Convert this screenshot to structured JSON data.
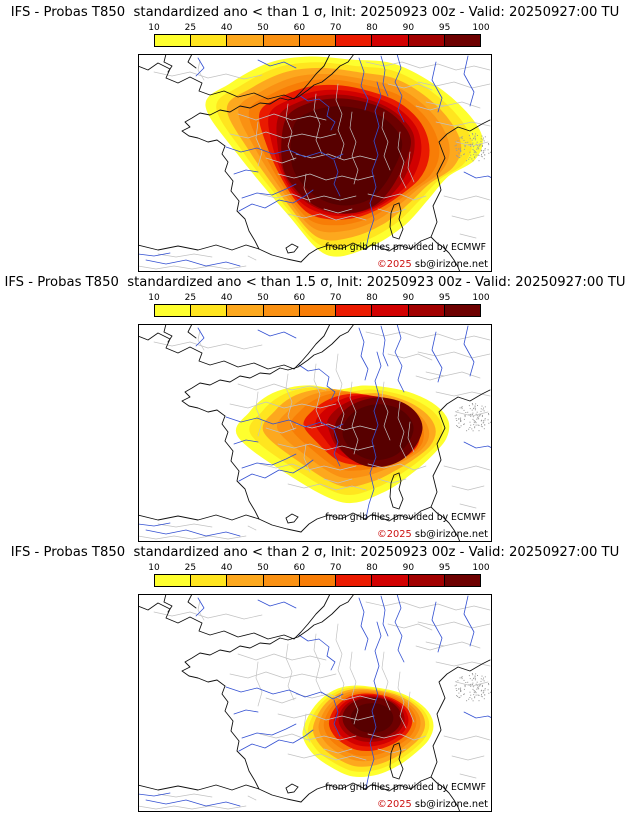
{
  "page": {
    "background": "#ffffff"
  },
  "colorbar": {
    "ticks": [
      "10",
      "25",
      "40",
      "50",
      "60",
      "70",
      "80",
      "90",
      "95",
      "100"
    ],
    "colors": [
      "#feff2e",
      "#ffe51f",
      "#fda81e",
      "#fa9113",
      "#f87d06",
      "#ea1a00",
      "#d10000",
      "#a10000",
      "#6d0000"
    ],
    "border_color": "#000000"
  },
  "map_colors": {
    "core_extra": "#570000",
    "coast": "#111111",
    "river": "#3350d2",
    "admin": "#c2c2c2",
    "stipple": "#9a9a9a",
    "frame": "#000000",
    "sea": "#ffffff",
    "copyright_red": "#cc1111",
    "text_black": "#000000"
  },
  "attribution": {
    "line1": "from grib files provided by ECMWF",
    "copyright": "©2025 ",
    "site": "sb@irizone.net"
  },
  "panels": [
    {
      "id": "sigma-1",
      "sigma": "1",
      "title": "IFS - Probas T850  standardized ano < than 1 σ, Init: 20250923 00z - Valid: 20250927:00 TU"
    },
    {
      "id": "sigma-1.5",
      "sigma": "1.5",
      "title": "IFS - Probas T850  standardized ano < than 1.5 σ, Init: 20250923 00z - Valid: 20250927:00 TU"
    },
    {
      "id": "sigma-2",
      "sigma": "2",
      "title": "IFS - Probas T850  standardized ano < than 2 σ, Init: 20250923 00z - Valid: 20250927:00 TU"
    }
  ],
  "chart_data": [
    {
      "type": "heatmap",
      "title": "IFS - Probas T850 standardized ano < than 1 sigma, Init: 20250923 00z - Valid: 20250927:00 TU",
      "variable": "T850 standardized anomaly probability",
      "threshold_sigma": 1,
      "unit": "%",
      "scale_ticks": [
        10,
        25,
        40,
        50,
        60,
        70,
        80,
        90,
        95,
        100
      ],
      "scale_colors": [
        "#feff2e",
        "#ffe51f",
        "#fda81e",
        "#fa9113",
        "#f87d06",
        "#ea1a00",
        "#d10000",
        "#a10000",
        "#6d0000"
      ],
      "extent_note": "probabilities >95% (dark maroon) cover most of central and southern France; yellow fringe from Brittany to the eastern border"
    },
    {
      "type": "heatmap",
      "title": "IFS - Probas T850 standardized ano < than 1.5 sigma, Init: 20250923 00z - Valid: 20250927:00 TU",
      "variable": "T850 standardized anomaly probability",
      "threshold_sigma": 1.5,
      "unit": "%",
      "scale_ticks": [
        10,
        25,
        40,
        50,
        60,
        70,
        80,
        90,
        95,
        100
      ],
      "scale_colors": [
        "#feff2e",
        "#ffe51f",
        "#fda81e",
        "#fa9113",
        "#f87d06",
        "#ea1a00",
        "#d10000",
        "#a10000",
        "#6d0000"
      ],
      "extent_note": "core >95% over east-central France (Massif Central to the Alps), yellow fringe over western and central France"
    },
    {
      "type": "heatmap",
      "title": "IFS - Probas T850 standardized ano < than 2 sigma, Init: 20250923 00z - Valid: 20250927:00 TU",
      "variable": "T850 standardized anomaly probability",
      "threshold_sigma": 2,
      "unit": "%",
      "scale_ticks": [
        10,
        25,
        40,
        50,
        60,
        70,
        80,
        90,
        95,
        100
      ],
      "scale_colors": [
        "#feff2e",
        "#ffe51f",
        "#fda81e",
        "#fa9113",
        "#f87d06",
        "#ea1a00",
        "#d10000",
        "#a10000",
        "#6d0000"
      ],
      "extent_note": "smaller core of high probability restricted to southeastern France around the Rhone valley and southern Alps"
    }
  ]
}
